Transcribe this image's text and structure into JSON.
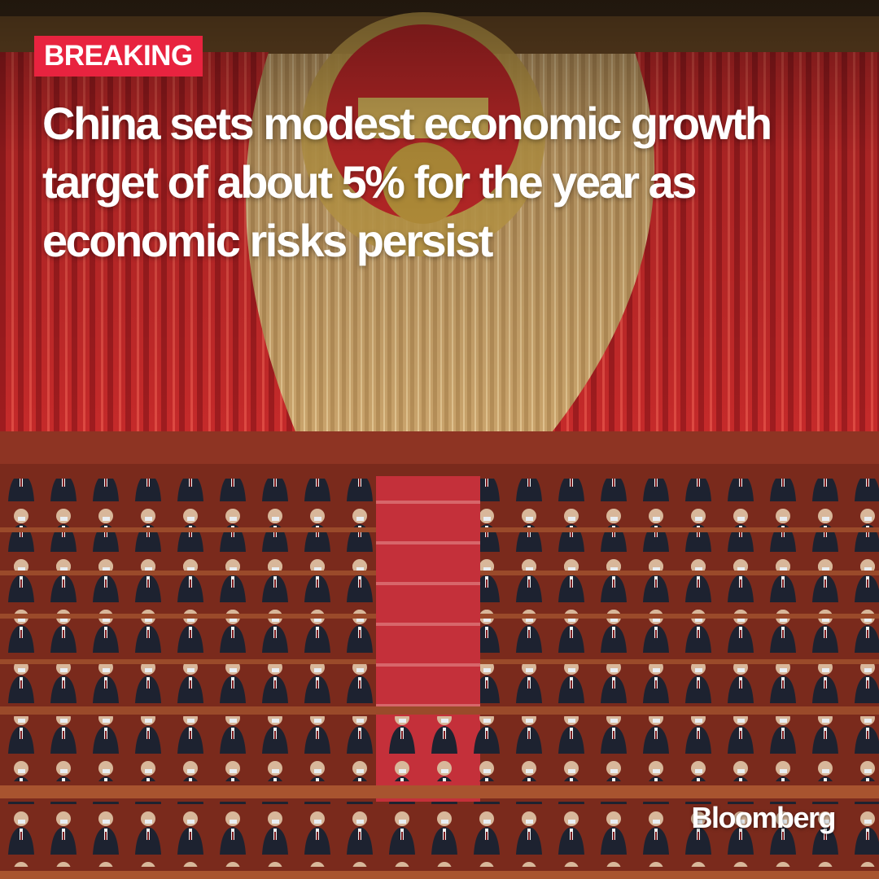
{
  "badge": {
    "label": "BREAKING"
  },
  "headline": {
    "text": "China sets modest economic growth target of about 5%  for the year as economic risks persist"
  },
  "brand": {
    "logo": "Bloomberg"
  },
  "photo": {
    "subject": "great-hall-assembly-photo"
  },
  "colors": {
    "badge_bg": "#e8233f",
    "text": "#ffffff",
    "curtain_red": "#c8282a",
    "drape_gold": "#c9a46a"
  }
}
